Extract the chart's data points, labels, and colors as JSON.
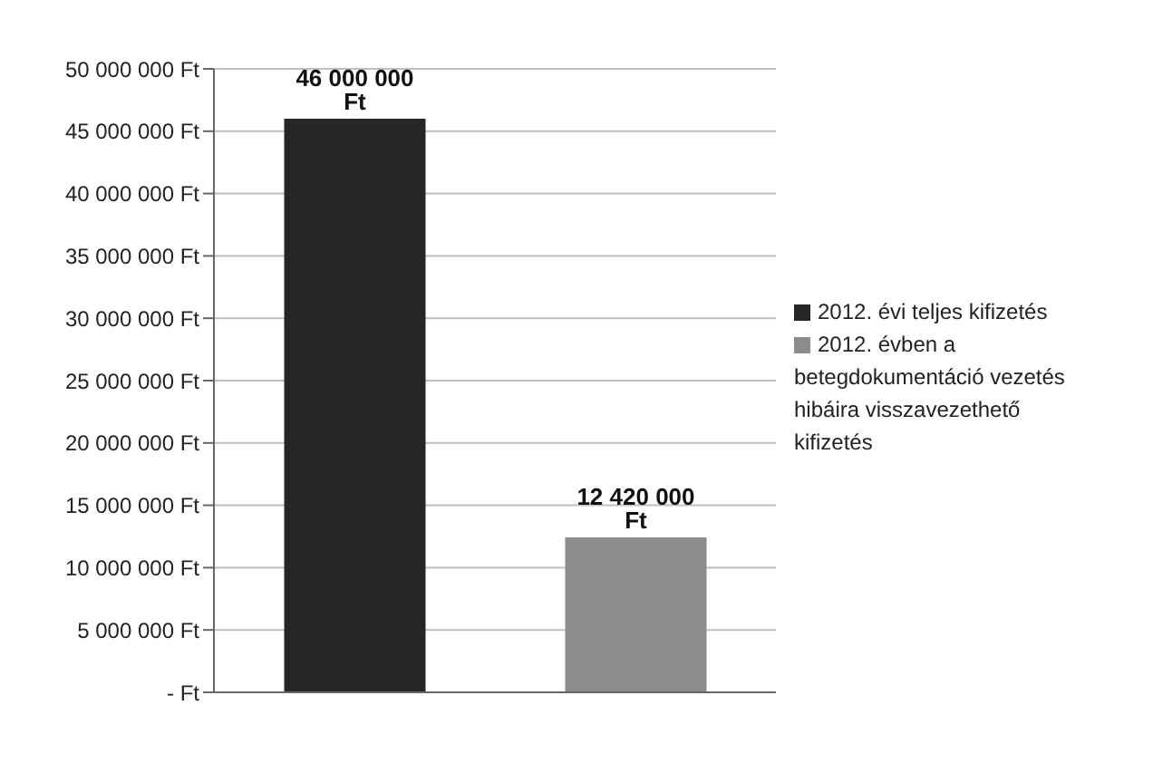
{
  "chart_data": {
    "type": "bar",
    "categories": [
      null,
      null
    ],
    "series": [
      {
        "name": "2012. évi teljes kifizetés",
        "color": "#262626",
        "values": [
          46000000,
          null
        ],
        "value_labels": [
          "46 000 000 Ft",
          null
        ]
      },
      {
        "name": "2012. évben a betegdokumentáció vezetés hibáira visszavezethető kifizetés",
        "color": "#8c8c8c",
        "values": [
          null,
          12420000
        ],
        "value_labels": [
          null,
          "12 420 000 Ft"
        ]
      }
    ],
    "ylim": [
      0,
      50000000
    ],
    "yticks": [
      {
        "value": 0,
        "label": "- Ft"
      },
      {
        "value": 5000000,
        "label": "5 000 000 Ft"
      },
      {
        "value": 10000000,
        "label": "10 000 000 Ft"
      },
      {
        "value": 15000000,
        "label": "15 000 000 Ft"
      },
      {
        "value": 20000000,
        "label": "20 000 000 Ft"
      },
      {
        "value": 25000000,
        "label": "25 000 000 Ft"
      },
      {
        "value": 30000000,
        "label": "30 000 000 Ft"
      },
      {
        "value": 35000000,
        "label": "35 000 000 Ft"
      },
      {
        "value": 40000000,
        "label": "40 000 000 Ft"
      },
      {
        "value": 45000000,
        "label": "45 000 000 Ft"
      },
      {
        "value": 50000000,
        "label": "50 000 000 Ft"
      }
    ],
    "grid": "y",
    "legend": "right"
  }
}
